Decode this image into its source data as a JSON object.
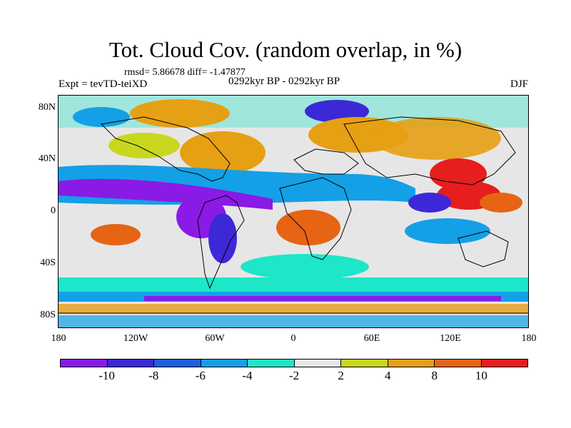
{
  "header": {
    "title": "Tot. Cloud Cov. (random overlap, in %)",
    "stats": "rmsd= 5.86678 diff= -1.47877",
    "experiment": "Expt = tevTD-teiXD",
    "period": "0292kyr BP - 0292kyr BP",
    "season": "DJF"
  },
  "map": {
    "projection": "cylindrical-equidistant",
    "lon_range": [
      -180,
      180
    ],
    "lat_range": [
      -90,
      90
    ],
    "lat_ticks": [
      "80N",
      "40N",
      "0",
      "40S",
      "80S"
    ],
    "lon_ticks": [
      "180",
      "120W",
      "60W",
      "0",
      "60E",
      "120E",
      "180"
    ],
    "field_description": "Anomaly field of total cloud cover, %, with continents outlined"
  },
  "colorbar": {
    "labels": [
      "-10",
      "-8",
      "-6",
      "-4",
      "-2",
      "2",
      "4",
      "8",
      "10"
    ],
    "colors": [
      "#8a1ae6",
      "#3c28d7",
      "#1e5fdc",
      "#14a0e6",
      "#1ee6c8",
      "#e6e6e6",
      "#c8d71e",
      "#e6a014",
      "#e66414",
      "#e61e1e"
    ]
  }
}
